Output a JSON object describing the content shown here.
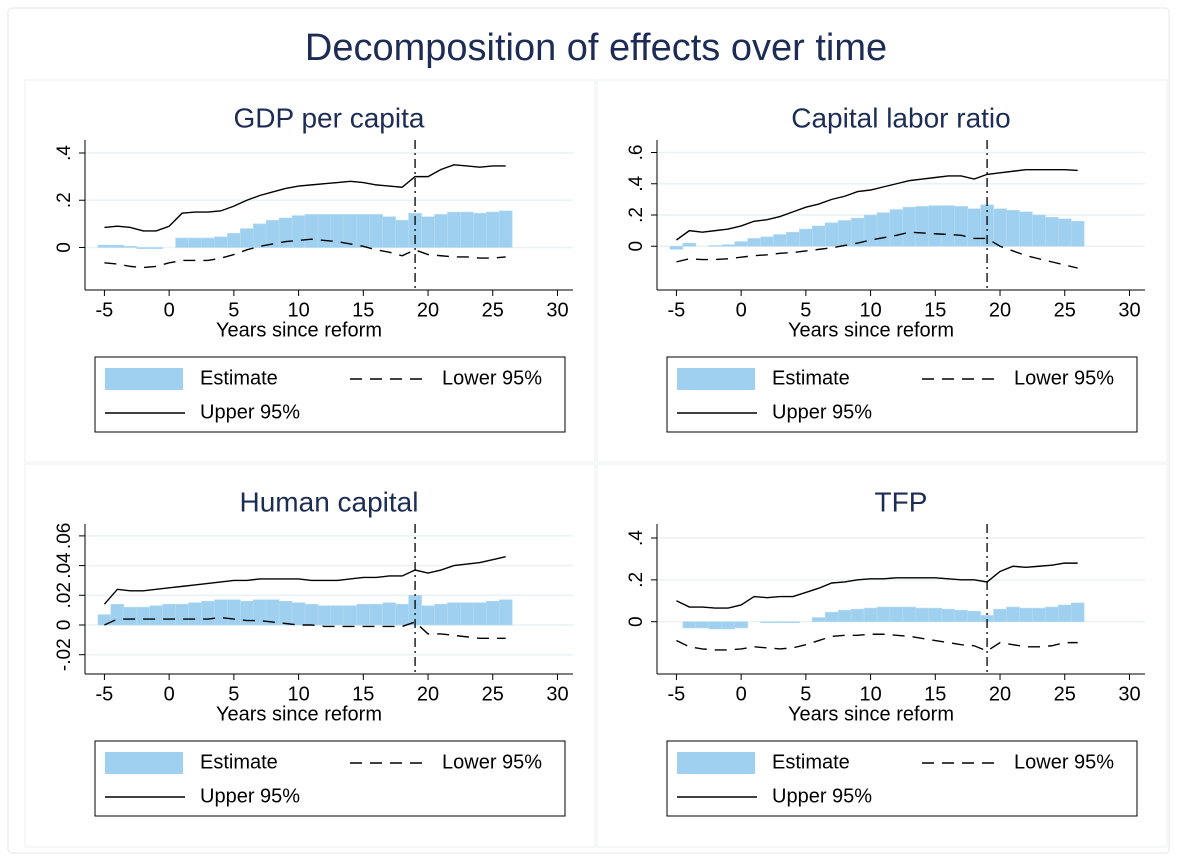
{
  "title": "Decomposition of effects over time",
  "chart_data": [
    {
      "type": "bar",
      "title": "GDP per capita",
      "xlabel": "Years since reform",
      "x": [
        -5,
        -4,
        -3,
        -2,
        -1,
        0,
        1,
        2,
        3,
        4,
        5,
        6,
        7,
        8,
        9,
        10,
        11,
        12,
        13,
        14,
        15,
        16,
        17,
        18,
        19,
        20,
        21,
        22,
        23,
        24,
        25,
        26
      ],
      "xlim": [
        -6.5,
        31.2
      ],
      "xticks": [
        -5,
        0,
        5,
        10,
        15,
        20,
        25,
        30
      ],
      "ylim": [
        -0.18,
        0.455
      ],
      "yticks": [
        {
          "value": 0,
          "label": "0"
        },
        {
          "value": 0.2,
          "label": ".2"
        },
        {
          "value": 0.4,
          "label": ".4"
        }
      ],
      "grid": true,
      "vline": 19,
      "series": [
        {
          "name": "Estimate",
          "type": "bar",
          "color": "#9fd0ef",
          "values": [
            0.01,
            0.01,
            0.005,
            -0.005,
            -0.005,
            0,
            0.04,
            0.04,
            0.04,
            0.045,
            0.06,
            0.08,
            0.1,
            0.115,
            0.125,
            0.135,
            0.14,
            0.14,
            0.14,
            0.14,
            0.14,
            0.14,
            0.13,
            0.115,
            0.145,
            0.13,
            0.14,
            0.15,
            0.15,
            0.145,
            0.15,
            0.155
          ]
        },
        {
          "name": "Lower 95%",
          "type": "line",
          "dash": true,
          "color": "#000000",
          "values": [
            -0.065,
            -0.07,
            -0.08,
            -0.085,
            -0.08,
            -0.065,
            -0.055,
            -0.055,
            -0.055,
            -0.045,
            -0.03,
            -0.01,
            0.005,
            0.015,
            0.025,
            0.03,
            0.035,
            0.03,
            0.025,
            0.015,
            0.005,
            -0.01,
            -0.02,
            -0.035,
            -0.01,
            -0.03,
            -0.035,
            -0.04,
            -0.04,
            -0.045,
            -0.045,
            -0.04
          ]
        },
        {
          "name": "Upper 95%",
          "type": "line",
          "dash": false,
          "color": "#000000",
          "values": [
            0.085,
            0.09,
            0.085,
            0.07,
            0.07,
            0.09,
            0.145,
            0.15,
            0.15,
            0.155,
            0.175,
            0.2,
            0.22,
            0.235,
            0.25,
            0.26,
            0.265,
            0.27,
            0.275,
            0.28,
            0.275,
            0.265,
            0.26,
            0.255,
            0.3,
            0.3,
            0.33,
            0.35,
            0.345,
            0.34,
            0.345,
            0.345
          ]
        }
      ]
    },
    {
      "type": "bar",
      "title": "Capital labor ratio",
      "xlabel": "Years since reform",
      "x": [
        -5,
        -4,
        -3,
        -2,
        -1,
        0,
        1,
        2,
        3,
        4,
        5,
        6,
        7,
        8,
        9,
        10,
        11,
        12,
        13,
        14,
        15,
        16,
        17,
        18,
        19,
        20,
        21,
        22,
        23,
        24,
        25,
        26
      ],
      "xlim": [
        -6.5,
        31.2
      ],
      "xticks": [
        -5,
        0,
        5,
        10,
        15,
        20,
        25,
        30
      ],
      "ylim": [
        -0.28,
        0.68
      ],
      "yticks": [
        {
          "value": 0,
          "label": "0"
        },
        {
          "value": 0.2,
          "label": ".2"
        },
        {
          "value": 0.4,
          "label": ".4"
        },
        {
          "value": 0.6,
          "label": ".6"
        }
      ],
      "grid": true,
      "vline": 19,
      "series": [
        {
          "name": "Estimate",
          "type": "bar",
          "color": "#9fd0ef",
          "values": [
            -0.02,
            0.02,
            0,
            0.005,
            0.01,
            0.03,
            0.05,
            0.06,
            0.075,
            0.09,
            0.11,
            0.13,
            0.15,
            0.165,
            0.18,
            0.2,
            0.215,
            0.235,
            0.25,
            0.255,
            0.26,
            0.26,
            0.255,
            0.24,
            0.265,
            0.24,
            0.23,
            0.22,
            0.2,
            0.185,
            0.175,
            0.16
          ]
        },
        {
          "name": "Lower 95%",
          "type": "line",
          "dash": true,
          "color": "#000000",
          "values": [
            -0.1,
            -0.08,
            -0.085,
            -0.085,
            -0.08,
            -0.07,
            -0.06,
            -0.055,
            -0.045,
            -0.04,
            -0.03,
            -0.02,
            -0.01,
            0.005,
            0.02,
            0.04,
            0.055,
            0.07,
            0.09,
            0.085,
            0.08,
            0.075,
            0.07,
            0.05,
            0.05,
            0,
            -0.03,
            -0.06,
            -0.08,
            -0.1,
            -0.12,
            -0.14
          ]
        },
        {
          "name": "Upper 95%",
          "type": "line",
          "dash": false,
          "color": "#000000",
          "values": [
            0.04,
            0.1,
            0.09,
            0.1,
            0.11,
            0.13,
            0.16,
            0.17,
            0.19,
            0.22,
            0.25,
            0.27,
            0.3,
            0.32,
            0.35,
            0.36,
            0.38,
            0.4,
            0.42,
            0.43,
            0.44,
            0.45,
            0.45,
            0.43,
            0.46,
            0.47,
            0.48,
            0.49,
            0.49,
            0.49,
            0.49,
            0.485
          ]
        }
      ]
    },
    {
      "type": "bar",
      "title": "Human capital",
      "xlabel": "Years since reform",
      "x": [
        -5,
        -4,
        -3,
        -2,
        -1,
        0,
        1,
        2,
        3,
        4,
        5,
        6,
        7,
        8,
        9,
        10,
        11,
        12,
        13,
        14,
        15,
        16,
        17,
        18,
        19,
        20,
        21,
        22,
        23,
        24,
        25,
        26
      ],
      "xlim": [
        -6.5,
        31.2
      ],
      "xticks": [
        -5,
        0,
        5,
        10,
        15,
        20,
        25,
        30
      ],
      "ylim": [
        -0.033,
        0.068
      ],
      "yticks": [
        {
          "value": -0.02,
          "label": "-.02"
        },
        {
          "value": 0,
          "label": "0"
        },
        {
          "value": 0.02,
          "label": ".02"
        },
        {
          "value": 0.04,
          "label": ".04"
        },
        {
          "value": 0.06,
          "label": ".06"
        }
      ],
      "grid": true,
      "vline": 19,
      "series": [
        {
          "name": "Estimate",
          "type": "bar",
          "color": "#9fd0ef",
          "values": [
            0.007,
            0.014,
            0.012,
            0.012,
            0.013,
            0.014,
            0.014,
            0.015,
            0.016,
            0.017,
            0.017,
            0.016,
            0.017,
            0.017,
            0.016,
            0.015,
            0.014,
            0.013,
            0.013,
            0.013,
            0.014,
            0.014,
            0.015,
            0.014,
            0.02,
            0.013,
            0.014,
            0.015,
            0.015,
            0.015,
            0.016,
            0.017
          ]
        },
        {
          "name": "Lower 95%",
          "type": "line",
          "dash": true,
          "color": "#000000",
          "values": [
            0,
            0.004,
            0.004,
            0.004,
            0.004,
            0.004,
            0.004,
            0.004,
            0.004,
            0.005,
            0.004,
            0.003,
            0.003,
            0.002,
            0.001,
            0,
            0,
            -0.001,
            -0.001,
            -0.001,
            -0.001,
            -0.001,
            -0.001,
            -0.001,
            0.002,
            -0.006,
            -0.006,
            -0.007,
            -0.008,
            -0.009,
            -0.009,
            -0.009
          ]
        },
        {
          "name": "Upper 95%",
          "type": "line",
          "dash": false,
          "color": "#000000",
          "values": [
            0.014,
            0.024,
            0.023,
            0.023,
            0.024,
            0.025,
            0.026,
            0.027,
            0.028,
            0.029,
            0.03,
            0.03,
            0.031,
            0.031,
            0.031,
            0.031,
            0.03,
            0.03,
            0.03,
            0.031,
            0.032,
            0.032,
            0.033,
            0.033,
            0.037,
            0.035,
            0.037,
            0.04,
            0.041,
            0.042,
            0.044,
            0.046
          ]
        }
      ]
    },
    {
      "type": "bar",
      "title": "TFP",
      "xlabel": "Years since reform",
      "x": [
        -5,
        -4,
        -3,
        -2,
        -1,
        0,
        1,
        2,
        3,
        4,
        5,
        6,
        7,
        8,
        9,
        10,
        11,
        12,
        13,
        14,
        15,
        16,
        17,
        18,
        19,
        20,
        21,
        22,
        23,
        24,
        25,
        26
      ],
      "xlim": [
        -6.5,
        31.2
      ],
      "xticks": [
        -5,
        0,
        5,
        10,
        15,
        20,
        25,
        30
      ],
      "ylim": [
        -0.25,
        0.467
      ],
      "yticks": [
        {
          "value": 0,
          "label": "0"
        },
        {
          "value": 0.2,
          "label": ".2"
        },
        {
          "value": 0.4,
          "label": ".4"
        }
      ],
      "grid": true,
      "vline": 19,
      "series": [
        {
          "name": "Estimate",
          "type": "bar",
          "color": "#9fd0ef",
          "values": [
            0,
            -0.03,
            -0.03,
            -0.035,
            -0.035,
            -0.03,
            0,
            -0.005,
            -0.005,
            -0.005,
            0,
            0.02,
            0.045,
            0.055,
            0.06,
            0.065,
            0.07,
            0.07,
            0.07,
            0.065,
            0.065,
            0.06,
            0.055,
            0.05,
            0.03,
            0.06,
            0.07,
            0.065,
            0.065,
            0.07,
            0.08,
            0.09
          ]
        },
        {
          "name": "Lower 95%",
          "type": "line",
          "dash": true,
          "color": "#000000",
          "values": [
            -0.09,
            -0.12,
            -0.13,
            -0.135,
            -0.135,
            -0.13,
            -0.12,
            -0.125,
            -0.13,
            -0.125,
            -0.11,
            -0.09,
            -0.07,
            -0.065,
            -0.065,
            -0.06,
            -0.06,
            -0.065,
            -0.07,
            -0.08,
            -0.09,
            -0.1,
            -0.11,
            -0.115,
            -0.14,
            -0.1,
            -0.11,
            -0.12,
            -0.12,
            -0.115,
            -0.1,
            -0.1
          ]
        },
        {
          "name": "Upper 95%",
          "type": "line",
          "dash": false,
          "color": "#000000",
          "values": [
            0.1,
            0.07,
            0.07,
            0.065,
            0.065,
            0.08,
            0.12,
            0.115,
            0.12,
            0.12,
            0.14,
            0.16,
            0.185,
            0.19,
            0.2,
            0.205,
            0.205,
            0.21,
            0.21,
            0.21,
            0.21,
            0.205,
            0.2,
            0.2,
            0.19,
            0.24,
            0.265,
            0.26,
            0.265,
            0.27,
            0.28,
            0.28
          ]
        }
      ]
    }
  ]
}
